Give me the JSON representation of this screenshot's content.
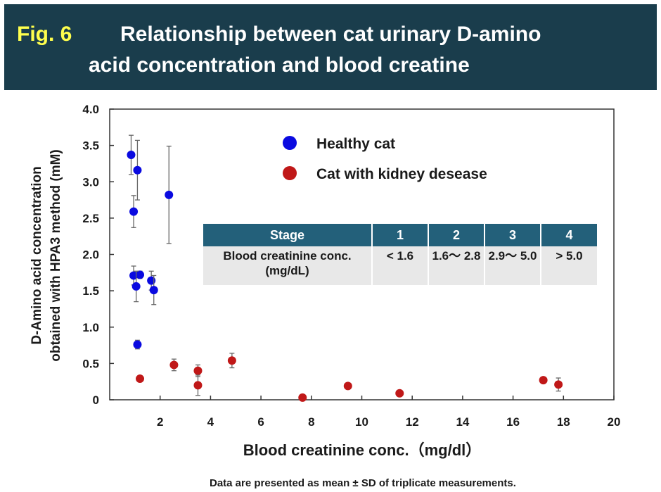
{
  "header": {
    "fig_label": "Fig. 6",
    "title_line1": "Relationship between cat urinary D-amino",
    "title_line2": "acid concentration and blood creatine"
  },
  "stage_table": {
    "header": [
      "Stage",
      "1",
      "2",
      "3",
      "4"
    ],
    "row_label": "Blood creatinine conc. (mg/dL)",
    "values": [
      "< 1.6",
      "1.6～ 2.8",
      "2.9～ 5.0",
      "> 5.0"
    ]
  },
  "footnote": "Data are presented as mean ± SD of triplicate measurements.",
  "colors": {
    "header_bg": "#1a3d4c",
    "fig_label": "#ffff4d",
    "healthy": "#0a0ae0",
    "kidney": "#c01818",
    "table_header": "#23607a"
  },
  "chart_data": {
    "type": "scatter",
    "title": "Relationship between cat urinary D-amino acid concentration and blood creatine",
    "xlabel": "Blood creatinine conc.（mg/dl）",
    "ylabel_line1": "D-Amino acid concentration",
    "ylabel_line2": "obtained with HPA3 method (mM)",
    "xlim": [
      0,
      20
    ],
    "ylim": [
      0,
      4.0
    ],
    "x_ticks": [
      2,
      4,
      6,
      8,
      10,
      12,
      14,
      16,
      18,
      20
    ],
    "y_ticks": [
      0,
      0.5,
      1.0,
      1.5,
      2.0,
      2.5,
      3.0,
      3.5,
      4.0
    ],
    "y_tick_labels": [
      "0",
      "0.5",
      "1.0",
      "1.5",
      "2.0",
      "2.5",
      "3.0",
      "3.5",
      "4.0"
    ],
    "series": [
      {
        "name": "Healthy cat",
        "color": "#0a0ae0",
        "points": [
          {
            "x": 0.85,
            "y": 3.37,
            "sd": 0.27
          },
          {
            "x": 1.1,
            "y": 3.16,
            "sd": 0.41
          },
          {
            "x": 0.95,
            "y": 2.59,
            "sd": 0.22
          },
          {
            "x": 2.35,
            "y": 2.82,
            "sd": 0.67
          },
          {
            "x": 0.95,
            "y": 1.71,
            "sd": 0.13
          },
          {
            "x": 1.2,
            "y": 1.72,
            "sd": 0.05
          },
          {
            "x": 1.05,
            "y": 1.56,
            "sd": 0.21
          },
          {
            "x": 1.65,
            "y": 1.64,
            "sd": 0.13
          },
          {
            "x": 1.75,
            "y": 1.51,
            "sd": 0.2
          },
          {
            "x": 1.1,
            "y": 0.76,
            "sd": 0.06
          }
        ]
      },
      {
        "name": "Cat with kidney desease",
        "color": "#c01818",
        "points": [
          {
            "x": 1.2,
            "y": 0.29,
            "sd": 0.0
          },
          {
            "x": 2.55,
            "y": 0.48,
            "sd": 0.08
          },
          {
            "x": 3.5,
            "y": 0.4,
            "sd": 0.08
          },
          {
            "x": 3.5,
            "y": 0.2,
            "sd": 0.14
          },
          {
            "x": 4.85,
            "y": 0.54,
            "sd": 0.1
          },
          {
            "x": 7.65,
            "y": 0.03,
            "sd": 0.0
          },
          {
            "x": 9.45,
            "y": 0.19,
            "sd": 0.0
          },
          {
            "x": 11.5,
            "y": 0.09,
            "sd": 0.0
          },
          {
            "x": 17.2,
            "y": 0.27,
            "sd": 0.03
          },
          {
            "x": 17.8,
            "y": 0.21,
            "sd": 0.09
          }
        ]
      }
    ]
  }
}
